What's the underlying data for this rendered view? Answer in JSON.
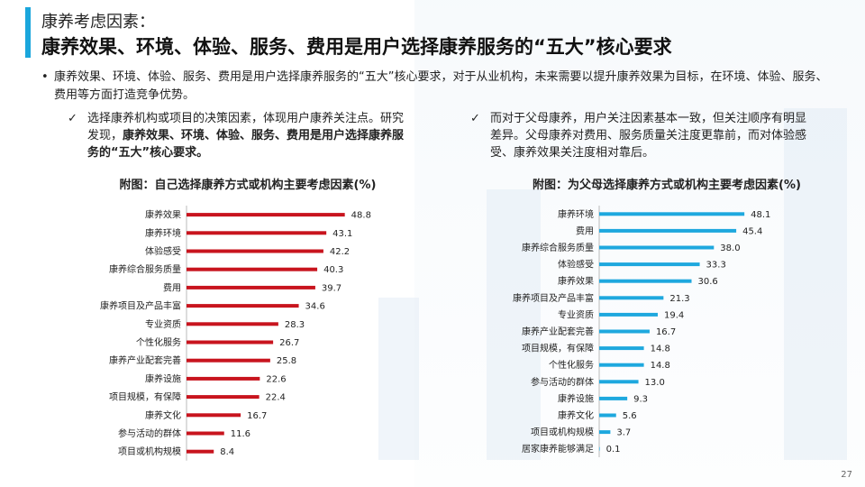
{
  "header": {
    "subtitle": "康养考虑因素：",
    "title": "康养效果、环境、体验、服务、费用是用户选择康养服务的“五大”核心要求"
  },
  "summary": {
    "bullet": "•",
    "text": "康养效果、环境、体验、服务、费用是用户选择康养服务的“五大”核心要求，对于从业机构，未来需要以提升康养效果为目标，在环境、体验、服务、费用等方面打造竞争优势。"
  },
  "left_point": {
    "check": "✓",
    "text": "选择康养机构或项目的决策因素，体现用户康养关注点。研究发现，",
    "bold_text": "康养效果、环境、体验、服务、费用是用户选择康养服务的“五大”核心要求。"
  },
  "right_point": {
    "check": "✓",
    "text": "而对于父母康养，用户关注因素基本一致，但关注顺序有明显差异。父母康养对费用、服务质量关注度更靠前，而对体验感受、康养效果关注度相对靠后。"
  },
  "page_number": "27",
  "colors": {
    "accent": "#1aa6dc",
    "left_bar": "#c8141e",
    "right_bar": "#1ea8de"
  },
  "chart_data": [
    {
      "type": "bar",
      "orientation": "horizontal",
      "title": "附图：自己选择康养方式或机构主要考虑因素(%)",
      "categories": [
        "康养效果",
        "康养环境",
        "体验感受",
        "康养综合服务质量",
        "费用",
        "康养项目及产品丰富",
        "专业资质",
        "个性化服务",
        "康养产业配套完善",
        "康养设施",
        "项目规模，有保障",
        "康养文化",
        "参与活动的群体",
        "项目或机构规模"
      ],
      "values": [
        48.8,
        43.1,
        42.2,
        40.3,
        39.7,
        34.6,
        28.3,
        26.7,
        25.8,
        22.6,
        22.4,
        16.7,
        11.6,
        8.4
      ],
      "value_labels": [
        "48.8",
        "43.1",
        "42.2",
        "40.3",
        "39.7",
        "34.6",
        "28.3",
        "26.7",
        "25.8",
        "22.6",
        "22.4",
        "16.7",
        "11.6",
        "8.4"
      ],
      "color": "#c8141e",
      "xlim": [
        0,
        50
      ]
    },
    {
      "type": "bar",
      "orientation": "horizontal",
      "title": "附图：为父母选择康养方式或机构主要考虑因素(%)",
      "categories": [
        "康养环境",
        "费用",
        "康养综合服务质量",
        "体验感受",
        "康养效果",
        "康养项目及产品丰富",
        "专业资质",
        "康养产业配套完善",
        "项目规模，有保障",
        "个性化服务",
        "参与活动的群体",
        "康养设施",
        "康养文化",
        "项目或机构规模",
        "居家康养能够满足"
      ],
      "values": [
        48.1,
        45.4,
        38.0,
        33.3,
        30.6,
        21.3,
        19.4,
        16.7,
        14.8,
        14.8,
        13.0,
        9.3,
        5.6,
        3.7,
        0.1
      ],
      "value_labels": [
        "48.1",
        "45.4",
        "38.0",
        "33.3",
        "30.6",
        "21.3",
        "19.4",
        "16.7",
        "14.8",
        "14.8",
        "13.0",
        "9.3",
        "5.6",
        "3.7",
        "0.1"
      ],
      "color": "#1ea8de",
      "xlim": [
        0,
        50
      ]
    }
  ]
}
